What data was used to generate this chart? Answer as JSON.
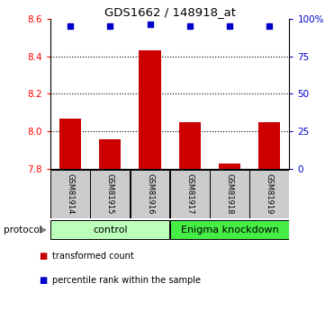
{
  "title": "GDS1662 / 148918_at",
  "samples": [
    "GSM81914",
    "GSM81915",
    "GSM81916",
    "GSM81917",
    "GSM81918",
    "GSM81919"
  ],
  "bar_values": [
    8.07,
    7.96,
    8.43,
    8.05,
    7.83,
    8.05
  ],
  "bar_color": "#cc0000",
  "percentile_values": [
    95,
    95,
    96,
    95,
    95,
    95
  ],
  "blue_color": "#0000cc",
  "ylim_left": [
    7.8,
    8.6
  ],
  "ylim_right": [
    0,
    100
  ],
  "left_ticks": [
    7.8,
    8.0,
    8.2,
    8.4,
    8.6
  ],
  "right_ticks": [
    0,
    25,
    50,
    75,
    100
  ],
  "right_tick_labels": [
    "0",
    "25",
    "50",
    "75",
    "100%"
  ],
  "dotted_lines": [
    8.0,
    8.2,
    8.4
  ],
  "control_label": "control",
  "knockdown_label": "Enigma knockdown",
  "control_color": "#bbffbb",
  "knockdown_color": "#44ee44",
  "sample_box_color": "#cccccc",
  "protocol_label": "protocol",
  "legend_red_label": "transformed count",
  "legend_blue_label": "percentile rank within the sample",
  "bar_width": 0.55
}
